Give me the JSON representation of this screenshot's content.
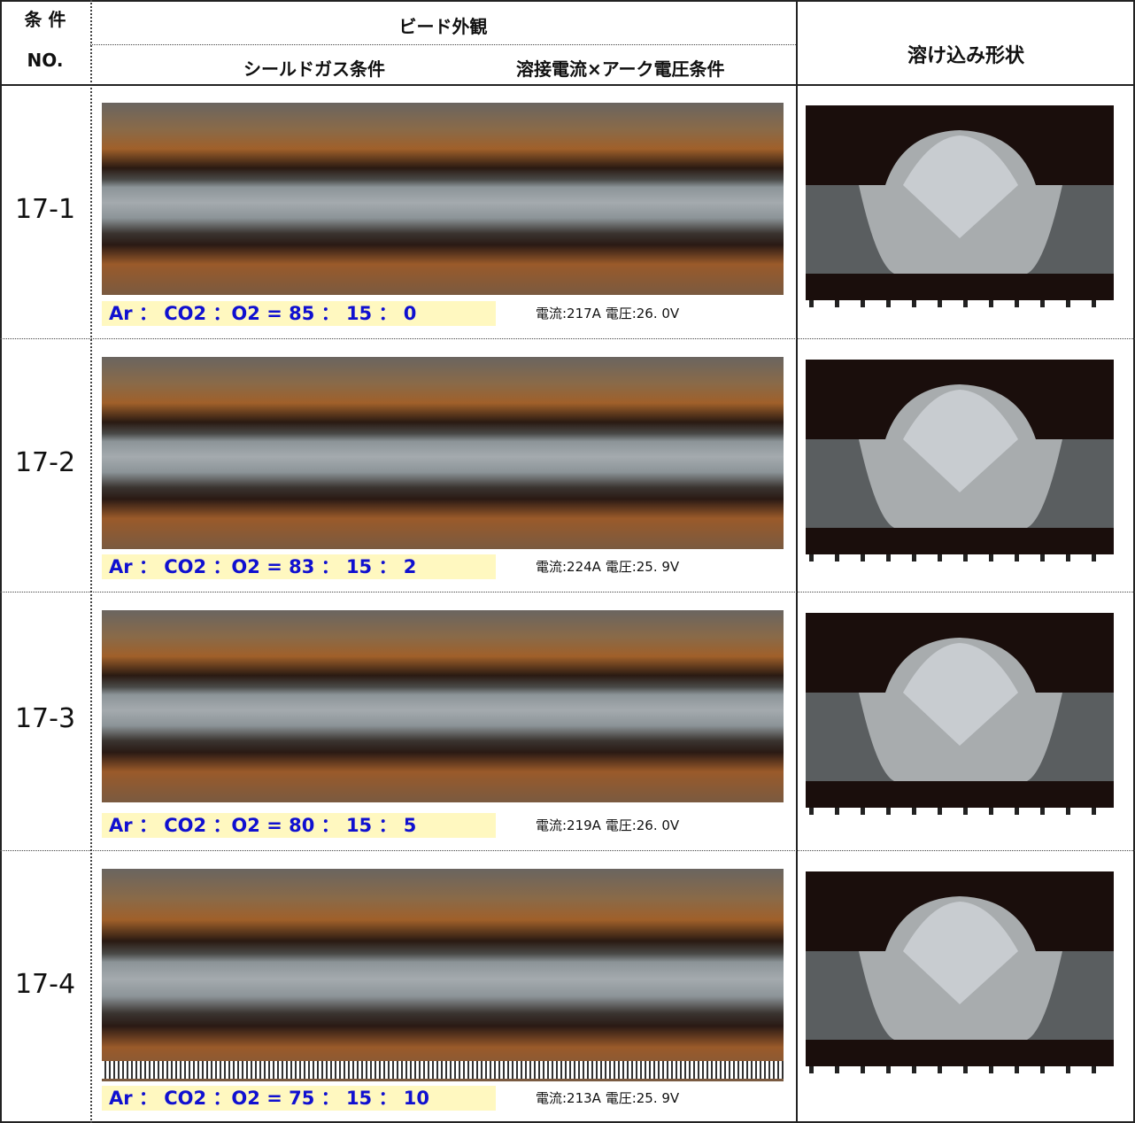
{
  "header": {
    "no_line1": "条 件",
    "no_line2": "NO.",
    "bead": "ビード外観",
    "gas": "シールドガス条件",
    "current": "溶接電流×アーク電圧条件",
    "shape": "溶け込み形状"
  },
  "rows": [
    {
      "no": "17-1",
      "gas": "Ar ： CO2 ：O2 = 85 ： 15 ： 0",
      "condition": "電流:217A 電圧:26. 0V"
    },
    {
      "no": "17-2",
      "gas": "Ar ： CO2 ：O2 = 83 ： 15 ： 2",
      "condition": "電流:224A 電圧:25. 9V"
    },
    {
      "no": "17-3",
      "gas": "Ar ： CO2 ：O2 = 80 ： 15 ： 5",
      "condition": "電流:219A 電圧:26. 0V"
    },
    {
      "no": "17-4",
      "gas": "Ar ： CO2 ：O2 = 75 ： 15 ： 10",
      "condition": "電流:213A 電圧:25. 9V"
    }
  ]
}
